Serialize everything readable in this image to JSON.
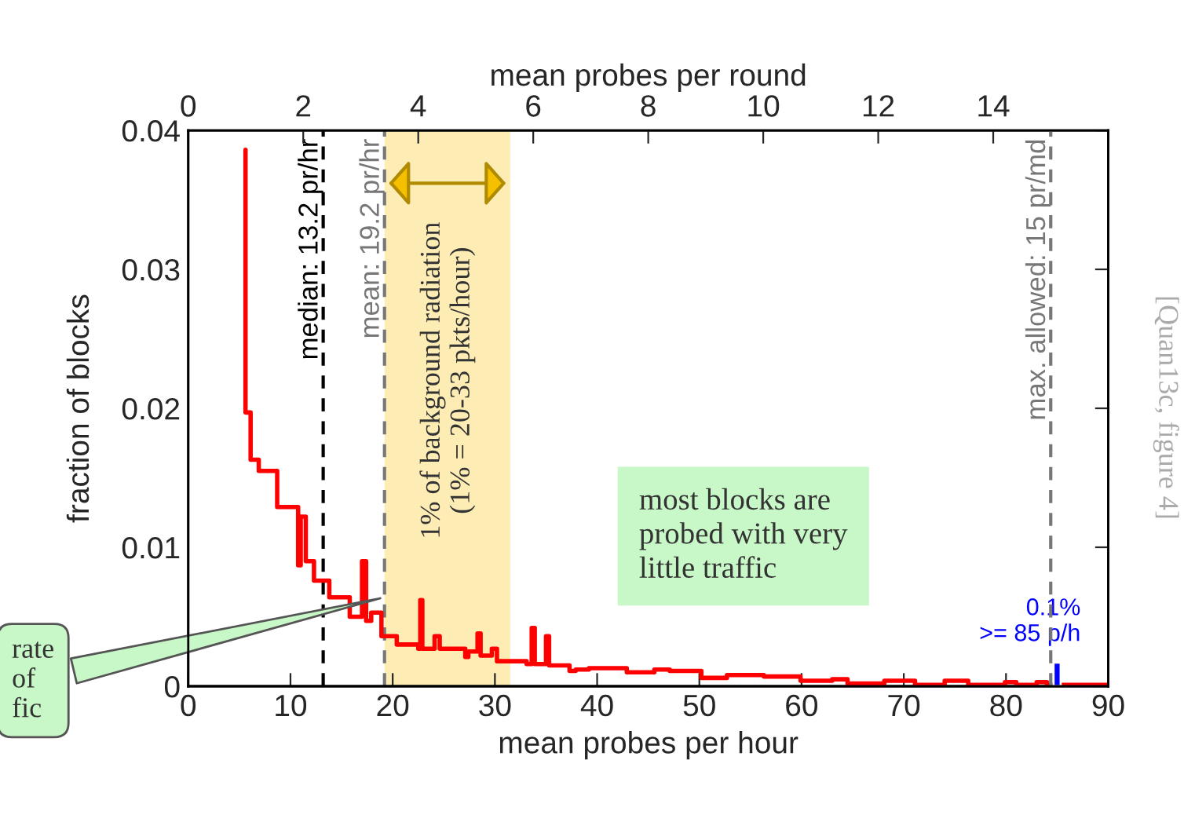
{
  "chart_data": {
    "type": "step",
    "xlabel": "mean probes per hour",
    "ylabel": "fraction of blocks",
    "x2label": "mean probes per round",
    "xlim": [
      0,
      90
    ],
    "xticks": [
      0,
      10,
      20,
      30,
      40,
      50,
      60,
      70,
      80,
      90
    ],
    "ylim": [
      0,
      0.04
    ],
    "yticks": [
      0,
      0.01,
      0.02,
      0.03,
      0.04
    ],
    "x2lim": [
      0,
      16
    ],
    "x2ticks": [
      0,
      2,
      4,
      6,
      8,
      10,
      12,
      14
    ],
    "grid": false,
    "legend": false,
    "series": [
      {
        "color": "#ff0000",
        "x": [
          5.6,
          5.6,
          6.1,
          6.9,
          8.7,
          10.75,
          11.0,
          11.5,
          12.3,
          13.8,
          15.8,
          17.0,
          17.4,
          17.9,
          18.9,
          20.4,
          22.5,
          22.7,
          22.9,
          24.1,
          24.6,
          27.1,
          27.4,
          28.3,
          28.6,
          29.7,
          30.2,
          33.1,
          33.6,
          33.9,
          35.0,
          35.3,
          37.3,
          37.9,
          39.2,
          41.2,
          42.9,
          45.6,
          47.1,
          50.2,
          52.7,
          56.3,
          59.9,
          63.0,
          64.5,
          68.1,
          71.1,
          74.0,
          76.3,
          79.9,
          81.0,
          83.0,
          84.0,
          90.0
        ],
        "values": [
          0.0386,
          0.0197,
          0.0163,
          0.0155,
          0.0129,
          0.0087,
          0.0122,
          0.009,
          0.0076,
          0.0064,
          0.005,
          0.009,
          0.0047,
          0.0053,
          0.0036,
          0.003,
          0.0027,
          0.0062,
          0.0027,
          0.0036,
          0.0027,
          0.0021,
          0.0025,
          0.0038,
          0.0022,
          0.0027,
          0.0018,
          0.0016,
          0.0042,
          0.0016,
          0.0036,
          0.0015,
          0.0011,
          0.0012,
          0.0013,
          0.0013,
          0.001,
          0.0012,
          0.0011,
          0.0006,
          0.0008,
          0.0007,
          0.0004,
          0.0005,
          0.0002,
          0.0004,
          0.0001,
          0.0004,
          0.0001,
          0.0003,
          0.0001,
          0.0003,
          0.0001,
          0.0001
        ]
      },
      {
        "type": "bar",
        "color": "#0000ff",
        "x": [
          85
        ],
        "values": [
          0.0017
        ]
      }
    ],
    "ref_lines": [
      {
        "axis": "x",
        "value": 13.2,
        "label": "median: 13.2 pr/hr",
        "color": "#000000",
        "line_style": "dashed"
      },
      {
        "axis": "x",
        "value": 19.2,
        "label": "mean: 19.2 pr/hr",
        "color": "#777777",
        "line_style": "dashed"
      },
      {
        "axis": "x2",
        "value": 15,
        "label": "max. allowed: 15 pr/md",
        "color": "#777777",
        "line_style": "dashed"
      }
    ],
    "bands": [
      {
        "axis": "x",
        "from": 19.2,
        "to": 31.5,
        "label": "1% of background radiation\n(1% = 20-33 pkts/hour)",
        "color": "#fdedb5"
      }
    ],
    "annotations": [
      {
        "text": "0.1%\n>= 85 p/h",
        "x": 85,
        "y": 0.0017
      },
      "most blocks are\nprobed with very\nlittle traffic",
      {
        "text": "rate\nof\nfic",
        "x": 19.2,
        "y": 0.0064
      },
      "[Quan13c, figure 4]"
    ]
  }
}
